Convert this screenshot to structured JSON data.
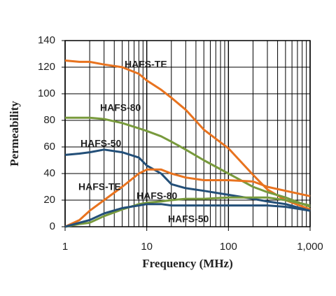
{
  "chart_data": {
    "type": "line",
    "x_label": "Frequency (MHz)",
    "y_label": "Permeability",
    "x": [
      1,
      1.5,
      2,
      3,
      5,
      8,
      10,
      15,
      20,
      30,
      50,
      100,
      200,
      300,
      500,
      1000
    ],
    "series": [
      {
        "name": "HAFS-TE",
        "color": "#e8731f",
        "values": [
          125,
          124,
          124,
          122,
          120,
          115,
          110,
          103,
          97,
          88,
          73,
          59,
          39,
          28,
          20,
          13
        ]
      },
      {
        "name": "HAFS-80",
        "color": "#789a3c",
        "values": [
          82,
          82,
          82,
          81,
          78,
          74,
          72,
          68,
          64,
          58,
          50,
          40,
          30,
          26,
          22,
          15
        ]
      },
      {
        "name": "HAFS-50",
        "color": "#234f78",
        "values": [
          54,
          55,
          56,
          58,
          56,
          52,
          46,
          40,
          32,
          29,
          27,
          24,
          21,
          19,
          17,
          12
        ]
      },
      {
        "name": "HAFS-TE",
        "color": "#e8731f",
        "values": [
          0,
          5,
          12,
          20,
          30,
          40,
          43,
          43,
          40,
          37,
          35,
          35,
          34,
          30,
          27,
          23
        ]
      },
      {
        "name": "HAFS-80",
        "color": "#789a3c",
        "values": [
          0,
          2,
          3,
          8,
          13,
          17,
          18,
          19,
          20,
          21,
          21,
          22,
          22,
          22,
          20,
          16
        ]
      },
      {
        "name": "HAFS-50",
        "color": "#234f78",
        "values": [
          0,
          3,
          5,
          10,
          14,
          16,
          17,
          17,
          16,
          16,
          16,
          16,
          16,
          16,
          15,
          12
        ]
      }
    ],
    "xlim": [
      1,
      1000
    ],
    "xscale": "log",
    "xticks": [
      1,
      10,
      100,
      {
        "value": 1000,
        "label": "1,000"
      }
    ],
    "xminorticks": [
      2,
      3,
      4,
      5,
      6,
      7,
      8,
      9,
      20,
      30,
      40,
      50,
      60,
      70,
      80,
      90,
      200,
      300,
      400,
      500,
      600,
      700,
      800,
      900
    ],
    "ylim": [
      0,
      140
    ],
    "yticks": [
      0,
      20,
      40,
      60,
      80,
      100,
      120,
      140
    ],
    "grid": true
  }
}
